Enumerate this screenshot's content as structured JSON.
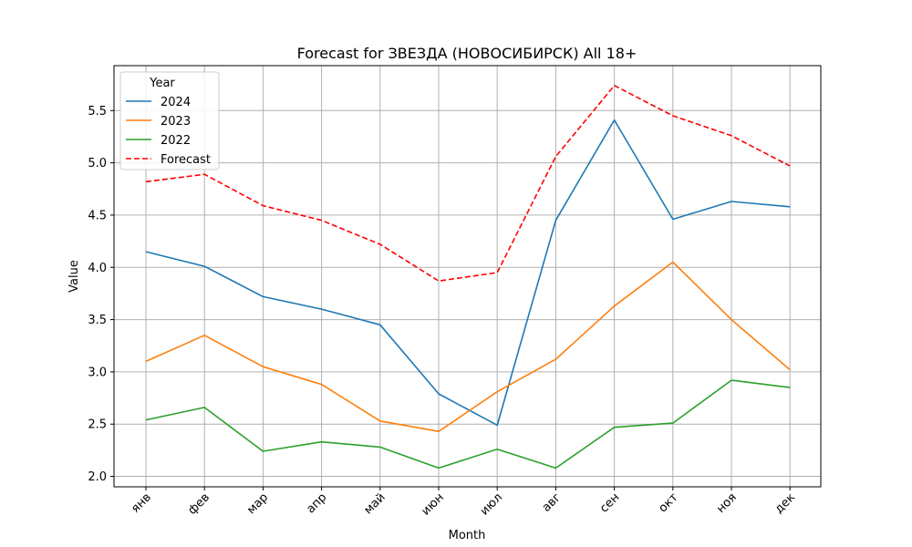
{
  "chart_data": {
    "type": "line",
    "title": "Forecast for ЗВЕЗДА (НОВОСИБИРСК) All 18+",
    "xlabel": "Month",
    "ylabel": "Value",
    "categories": [
      "янв",
      "фев",
      "мар",
      "апр",
      "май",
      "июн",
      "июл",
      "авг",
      "сен",
      "окт",
      "ноя",
      "дек"
    ],
    "ylim": [
      1.9,
      5.93
    ],
    "yticks": [
      2.0,
      2.5,
      3.0,
      3.5,
      4.0,
      4.5,
      5.0,
      5.5
    ],
    "ytick_labels": [
      "2.0",
      "2.5",
      "3.0",
      "3.5",
      "4.0",
      "4.5",
      "5.0",
      "5.5"
    ],
    "grid": true,
    "legend": {
      "title": "Year",
      "placement": "top-left"
    },
    "series": [
      {
        "name": "2024",
        "color": "#1f77b4",
        "dash": "solid",
        "values": [
          4.15,
          4.01,
          3.72,
          3.6,
          3.45,
          2.79,
          2.49,
          4.45,
          5.41,
          4.46,
          4.63,
          4.58
        ]
      },
      {
        "name": "2023",
        "color": "#ff7f0e",
        "dash": "solid",
        "values": [
          3.1,
          3.35,
          3.05,
          2.88,
          2.53,
          2.43,
          2.81,
          3.12,
          3.63,
          4.05,
          3.5,
          3.02
        ]
      },
      {
        "name": "2022",
        "color": "#2ca02c",
        "dash": "solid",
        "values": [
          2.54,
          2.66,
          2.24,
          2.33,
          2.28,
          2.08,
          2.26,
          2.08,
          2.47,
          2.51,
          2.92,
          2.85
        ]
      },
      {
        "name": "Forecast",
        "color": "#ff0000",
        "dash": "dashed",
        "values": [
          4.82,
          4.89,
          4.59,
          4.45,
          4.22,
          3.87,
          3.95,
          5.06,
          5.74,
          5.45,
          5.26,
          4.97
        ]
      }
    ]
  }
}
